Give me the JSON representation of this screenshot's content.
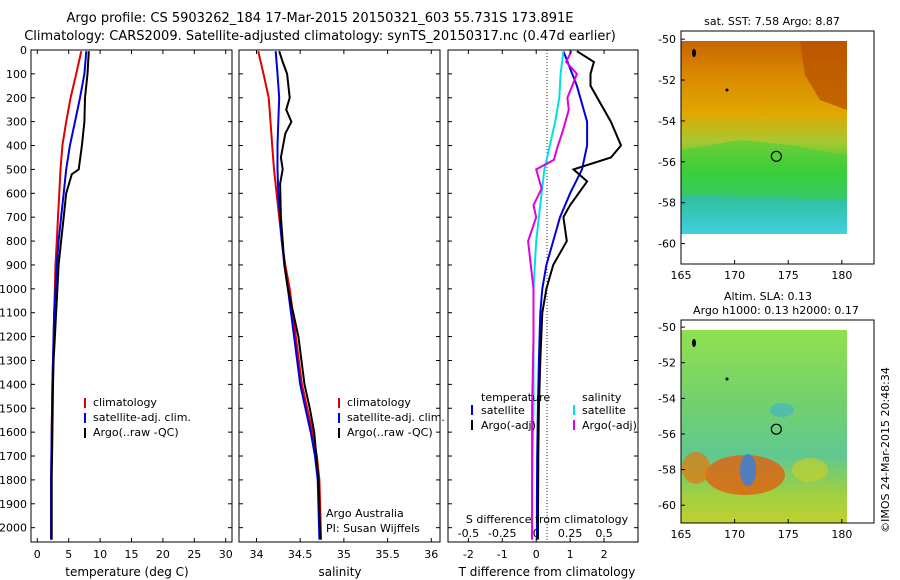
{
  "header": {
    "line1": "Argo profile: CS 5903262_184 17-Mar-2015 20150321_603 55.731S 173.891E",
    "line2": "Climatology: CARS2009. Satellite-adjusted climatology: synTS_20150317.nc (0.47d earlier)"
  },
  "colors": {
    "climatology": "#e00000",
    "satellite": "#0000dd",
    "argo": "#000000",
    "cyan": "#00e0e0",
    "magenta": "#e000e0"
  },
  "chart_data": [
    {
      "type": "line",
      "name": "temperature-panel",
      "xlabel": "temperature (deg C)",
      "xlim": [
        -1,
        31
      ],
      "ylim": [
        2060,
        0
      ],
      "xticks": [
        0,
        5,
        10,
        15,
        20,
        25,
        30
      ],
      "xtick_labels": [
        "0",
        "5",
        "10",
        "15",
        "20",
        "25",
        "30"
      ],
      "yticks": [
        0,
        100,
        200,
        300,
        400,
        500,
        600,
        700,
        800,
        900,
        1000,
        1100,
        1200,
        1300,
        1400,
        1500,
        1600,
        1700,
        1800,
        1900,
        2000
      ],
      "ytick_labels": [
        "0",
        "100",
        "200",
        "300",
        "400",
        "500",
        "600",
        "700",
        "800",
        "900",
        "1000",
        "1100",
        "1200",
        "1300",
        "1400",
        "1500",
        "1600",
        "1700",
        "1800",
        "1900",
        "2000"
      ],
      "legend": [
        "climatology",
        "satellite-adj. clim.",
        "Argo(..raw -QC)"
      ],
      "series": [
        {
          "name": "climatology",
          "color": "#e00000",
          "x": [
            7.0,
            6.2,
            5.3,
            4.6,
            4.0,
            3.7,
            3.5,
            3.3,
            3.1,
            2.9,
            2.8,
            2.7,
            2.6,
            2.5,
            2.4,
            2.3,
            2.2,
            2.2
          ],
          "y": [
            5,
            100,
            200,
            300,
            400,
            500,
            600,
            700,
            800,
            900,
            1000,
            1100,
            1200,
            1300,
            1400,
            1600,
            1800,
            2050
          ]
        },
        {
          "name": "satellite-adj. clim.",
          "color": "#0000dd",
          "x": [
            7.8,
            7.5,
            6.8,
            6.0,
            5.2,
            4.6,
            4.2,
            3.8,
            3.4,
            3.1,
            2.9,
            2.7,
            2.6,
            2.5,
            2.4,
            2.3,
            2.2,
            2.2
          ],
          "y": [
            5,
            100,
            200,
            300,
            400,
            500,
            600,
            700,
            800,
            900,
            1000,
            1100,
            1200,
            1300,
            1400,
            1600,
            1800,
            2050
          ]
        },
        {
          "name": "Argo(..raw -QC)",
          "color": "#000000",
          "x": [
            8.2,
            8.0,
            7.6,
            7.5,
            7.1,
            6.6,
            5.5,
            4.6,
            4.2,
            3.8,
            3.4,
            3.2,
            3.0,
            2.8,
            2.6,
            2.5,
            2.4,
            2.3,
            2.3
          ],
          "y": [
            5,
            100,
            200,
            300,
            400,
            500,
            520,
            600,
            700,
            800,
            900,
            1000,
            1100,
            1200,
            1300,
            1400,
            1600,
            1800,
            2050
          ]
        }
      ]
    },
    {
      "type": "line",
      "name": "salinity-panel",
      "xlabel": "salinity",
      "xlim": [
        33.8,
        36.1
      ],
      "ylim": [
        2060,
        0
      ],
      "xticks": [
        34,
        34.5,
        35,
        35.5,
        36
      ],
      "xtick_labels": [
        "34",
        "34.5",
        "35",
        "35.5",
        "36"
      ],
      "legend": [
        "climatology",
        "satellite-adj. clim."
      ],
      "legend_extra": "Argo(..raw -QC)",
      "annotation": [
        "Argo Australia",
        "PI: Susan Wijffels"
      ],
      "series": [
        {
          "name": "climatology",
          "color": "#e00000",
          "x": [
            34.02,
            34.08,
            34.14,
            34.16,
            34.18,
            34.2,
            34.23,
            34.26,
            34.29,
            34.33,
            34.38,
            34.45,
            34.52,
            34.58,
            34.64,
            34.69,
            34.72,
            34.74
          ],
          "y": [
            5,
            100,
            200,
            300,
            400,
            500,
            600,
            700,
            800,
            900,
            1000,
            1200,
            1400,
            1500,
            1600,
            1700,
            1800,
            2050
          ]
        },
        {
          "name": "satellite-adj. clim.",
          "color": "#0000dd",
          "x": [
            34.22,
            34.24,
            34.26,
            34.25,
            34.24,
            34.24,
            34.25,
            34.27,
            34.29,
            34.32,
            34.36,
            34.43,
            34.5,
            34.56,
            34.62,
            34.67,
            34.7,
            34.72
          ],
          "y": [
            5,
            100,
            200,
            300,
            400,
            500,
            600,
            700,
            800,
            900,
            1000,
            1200,
            1400,
            1500,
            1600,
            1700,
            1800,
            2050
          ]
        },
        {
          "name": "Argo(..raw -QC)",
          "color": "#000000",
          "x": [
            34.26,
            34.3,
            34.35,
            34.38,
            34.34,
            34.4,
            34.33,
            34.28,
            34.3,
            34.27,
            34.28,
            34.3,
            34.32,
            34.36,
            34.42,
            34.48,
            34.55,
            34.61,
            34.66,
            34.71,
            34.73
          ],
          "y": [
            5,
            50,
            100,
            200,
            250,
            300,
            350,
            450,
            500,
            560,
            700,
            800,
            900,
            1000,
            1100,
            1200,
            1400,
            1500,
            1600,
            1800,
            2050
          ]
        }
      ]
    },
    {
      "type": "line",
      "name": "difference-panel",
      "xlabel": "T difference from climatology",
      "xlabel2": "S difference from climatology",
      "xlim": [
        -2.6,
        3.0
      ],
      "ylim": [
        2060,
        0
      ],
      "xticks": [
        -2,
        -1,
        0,
        1,
        2
      ],
      "xtick_labels": [
        "-2",
        "-1",
        "0",
        "1",
        "2"
      ],
      "xticks2": [
        -0.5,
        -0.25,
        0,
        0.25,
        0.5
      ],
      "xtick2_labels": [
        "-0.5",
        "-0.25",
        "0",
        "0.25",
        "0.5"
      ],
      "legend_temperature": [
        "temperature",
        "satellite",
        "Argo(-adj)"
      ],
      "legend_salinity": [
        "salinity",
        "satellite",
        "Argo(-adj)"
      ],
      "series": [
        {
          "name": "T satellite",
          "color": "#0000dd",
          "x": [
            0.8,
            1.2,
            1.5,
            1.5,
            1.35,
            1.0,
            0.7,
            0.5,
            0.3,
            0.18,
            0.12,
            0.08,
            0.05,
            0.03,
            0.02,
            0.02
          ],
          "y": [
            5,
            150,
            300,
            400,
            500,
            600,
            700,
            800,
            900,
            1000,
            1100,
            1300,
            1500,
            1700,
            1900,
            2050
          ]
        },
        {
          "name": "T Argo(-adj)",
          "color": "#000000",
          "x": [
            1.2,
            1.7,
            1.6,
            1.6,
            2.2,
            2.5,
            2.2,
            1.1,
            1.5,
            1.0,
            0.8,
            0.9,
            0.5,
            0.3,
            0.18,
            0.12,
            0.08,
            0.06,
            0.05
          ],
          "y": [
            5,
            50,
            100,
            150,
            300,
            400,
            450,
            500,
            550,
            650,
            700,
            800,
            900,
            1000,
            1100,
            1300,
            1500,
            1700,
            2050
          ]
        },
        {
          "name": "S satellite",
          "color": "#00e0e0",
          "x": [
            0.2,
            0.18,
            0.17,
            0.14,
            0.1,
            0.06,
            0.04,
            0.02,
            0.0,
            -0.02,
            -0.02,
            -0.02,
            -0.03,
            -0.03
          ],
          "y": [
            5,
            100,
            200,
            300,
            400,
            500,
            600,
            700,
            800,
            1000,
            1200,
            1500,
            1800,
            2050
          ]
        },
        {
          "name": "S Argo(-adj)",
          "color": "#e000e0",
          "x": [
            0.26,
            0.22,
            0.3,
            0.23,
            0.24,
            0.19,
            0.16,
            0.13,
            0.0,
            0.04,
            -0.02,
            0.0,
            -0.06,
            -0.04,
            -0.02,
            -0.02,
            -0.03,
            -0.03
          ],
          "y": [
            5,
            50,
            100,
            200,
            250,
            350,
            400,
            460,
            500,
            580,
            650,
            700,
            800,
            900,
            1000,
            1200,
            1500,
            2050
          ]
        }
      ]
    },
    {
      "type": "heatmap",
      "name": "sst-map",
      "title": "sat. SST: 7.58 Argo: 8.87",
      "xlim": [
        165,
        183
      ],
      "ylim": [
        -61,
        -49.6
      ],
      "xticks": [
        165,
        170,
        175,
        180
      ],
      "xtick_labels": [
        "165",
        "170",
        "175",
        "180"
      ],
      "yticks": [
        -50,
        -52,
        -54,
        -56,
        -58,
        -60
      ],
      "ytick_labels": [
        "-50",
        "-52",
        "-54",
        "-56",
        "-58",
        "-60"
      ],
      "data_extent": {
        "lon": [
          166,
          180
        ],
        "lat": [
          -60,
          -50
        ]
      },
      "float_position": {
        "lon": 173.891,
        "lat": -55.731
      }
    },
    {
      "type": "heatmap",
      "name": "sla-map",
      "title": "Altim. SLA: 0.13",
      "subtitle": "Argo h1000: 0.13 h2000: 0.17",
      "xlim": [
        165,
        183
      ],
      "ylim": [
        -61,
        -49.6
      ],
      "xticks": [
        165,
        170,
        175,
        180
      ],
      "xtick_labels": [
        "165",
        "170",
        "175",
        "180"
      ],
      "yticks": [
        -50,
        -52,
        -54,
        -56,
        -58,
        -60
      ],
      "ytick_labels": [
        "-50",
        "-52",
        "-54",
        "-56",
        "-58",
        "-60"
      ],
      "data_extent": {
        "lon": [
          166,
          180
        ],
        "lat": [
          -60,
          -50
        ]
      },
      "float_position": {
        "lon": 173.891,
        "lat": -55.731
      }
    }
  ],
  "footer": {
    "stamp": "©IMOS 24-Mar-2015 20:48:34"
  }
}
